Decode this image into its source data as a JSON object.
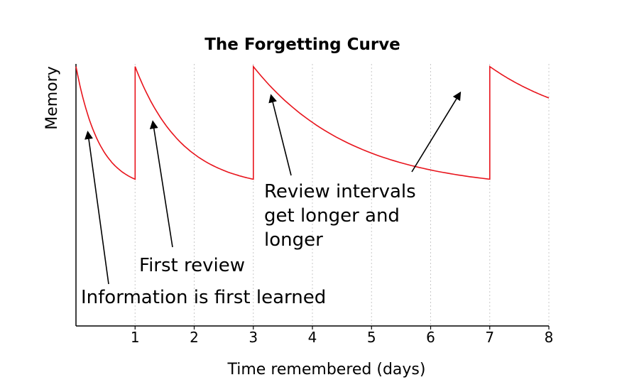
{
  "chart_data": {
    "type": "line",
    "title": "The Forgetting Curve",
    "xlabel": "Time remembered (days)",
    "ylabel": "Memory",
    "xlim": [
      0,
      8
    ],
    "ylim": [
      0,
      1
    ],
    "xticks": [
      1,
      2,
      3,
      4,
      5,
      6,
      7,
      8
    ],
    "grid": "vertical dotted",
    "line_color": "#e8141c",
    "series": [
      {
        "segments": [
          {
            "start": 0,
            "end": 1,
            "y0": 0.99,
            "y1": 0.56,
            "k": 2.5
          },
          {
            "start": 1,
            "end": 3,
            "y0": 0.99,
            "y1": 0.56,
            "k": 1.25
          },
          {
            "start": 3,
            "end": 7,
            "y0": 0.99,
            "y1": 0.56,
            "k": 0.6
          },
          {
            "start": 7,
            "end": 8,
            "y0": 0.99,
            "y1": 0.87,
            "k": 0.6
          }
        ]
      }
    ],
    "annotations": [
      {
        "text": "Information is first learned",
        "arrow_to": [
          0.2,
          0.74
        ]
      },
      {
        "text": "First review",
        "arrow_to": [
          1.3,
          0.78
        ]
      },
      {
        "text": "Review intervals get longer and longer",
        "lines": [
          "Review intervals",
          "get longer and",
          "longer"
        ],
        "arrow_to": [
          3.3,
          0.88
        ]
      },
      {
        "text": "",
        "arrow_to": [
          6.5,
          0.89
        ]
      }
    ]
  }
}
